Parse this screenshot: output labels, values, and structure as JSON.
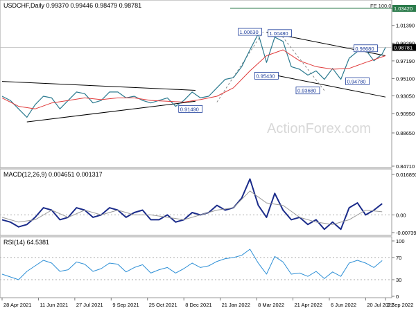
{
  "chart_data": [
    {
      "type": "line",
      "panel": "price",
      "title": "USDCHF,Daily  0.99370 0.99446 0.98479 0.98781",
      "symbol": "USDCHF,Daily",
      "ohlc": [
        "0.99370",
        "0.99446",
        "0.98479",
        "0.98781"
      ],
      "ylim": [
        0.8471,
        1.0342
      ],
      "yticks": [
        "1.03420",
        "1.01390",
        "0.99290",
        "0.97190",
        "0.95100",
        "0.93050",
        "0.90950",
        "0.88650",
        "0.84710"
      ],
      "current_price": "0.98781",
      "fib_label": "FE 100.0",
      "watermark": "ActionForex.com",
      "price_labels": [
        {
          "text": "1.00630",
          "t": 150,
          "v": 1.0063
        },
        {
          "text": "1.00480",
          "t": 168,
          "v": 1.0048
        },
        {
          "text": "0.95430",
          "t": 160,
          "v": 0.9543
        },
        {
          "text": "0.98680",
          "t": 220,
          "v": 0.9868
        },
        {
          "text": "0.94780",
          "t": 215,
          "v": 0.9478
        },
        {
          "text": "0.93680",
          "t": 185,
          "v": 0.9368
        },
        {
          "text": "0.91490",
          "t": 114,
          "v": 0.9149
        }
      ],
      "trendlines": [
        {
          "t1": 0,
          "v1": 0.9475,
          "t2": 117,
          "v2": 0.937,
          "color": "#000000"
        },
        {
          "t1": 15,
          "v1": 0.8995,
          "t2": 117,
          "v2": 0.924,
          "color": "#000000"
        },
        {
          "t1": 160,
          "v1": 1.006,
          "t2": 232,
          "v2": 0.978,
          "color": "#000000"
        },
        {
          "t1": 165,
          "v1": 0.955,
          "t2": 232,
          "v2": 0.929,
          "color": "#000000"
        },
        {
          "t1": 130,
          "v1": 0.923,
          "t2": 158,
          "v2": 1.0063,
          "color": "#888888",
          "dashed": true
        },
        {
          "t1": 168,
          "v1": 1.0048,
          "t2": 195,
          "v2": 0.9368,
          "color": "#888888",
          "dashed": true
        }
      ],
      "series": [
        {
          "name": "",
          "color": "#2b7a8f",
          "x": [
            0,
            5,
            10,
            15,
            20,
            25,
            30,
            35,
            40,
            45,
            50,
            55,
            60,
            65,
            70,
            75,
            80,
            85,
            90,
            95,
            100,
            105,
            110,
            115,
            120,
            125,
            130,
            135,
            140,
            145,
            150,
            155,
            160,
            165,
            170,
            175,
            180,
            185,
            190,
            195,
            200,
            205,
            210,
            215,
            220,
            225,
            230,
            232
          ],
          "values": [
            0.93,
            0.925,
            0.915,
            0.905,
            0.92,
            0.93,
            0.928,
            0.915,
            0.925,
            0.935,
            0.933,
            0.922,
            0.925,
            0.935,
            0.935,
            0.928,
            0.93,
            0.925,
            0.922,
            0.925,
            0.928,
            0.918,
            0.925,
            0.935,
            0.928,
            0.93,
            0.94,
            0.95,
            0.952,
            0.965,
            0.985,
            1.004,
            0.97,
            1.0,
            0.995,
            0.965,
            0.962,
            0.955,
            0.96,
            0.95,
            0.963,
            0.95,
            0.975,
            0.983,
            0.985,
            0.972,
            0.98,
            0.9878
          ]
        },
        {
          "name": "",
          "color": "#e03a3a",
          "x": [
            0,
            10,
            20,
            30,
            40,
            50,
            60,
            70,
            80,
            90,
            100,
            110,
            120,
            130,
            140,
            150,
            160,
            170,
            180,
            190,
            200,
            210,
            220,
            232
          ],
          "values": [
            0.928,
            0.918,
            0.915,
            0.922,
            0.925,
            0.928,
            0.926,
            0.928,
            0.928,
            0.925,
            0.924,
            0.923,
            0.926,
            0.93,
            0.94,
            0.96,
            0.978,
            0.985,
            0.972,
            0.965,
            0.962,
            0.963,
            0.97,
            0.978
          ]
        }
      ]
    },
    {
      "type": "line",
      "panel": "macd",
      "title": "MACD(12,26,9) 0.004651 0.001317",
      "ylim": [
        -0.00739,
        0.01689
      ],
      "yticks": [
        "0.016893",
        "0.00",
        "-0.007393"
      ],
      "series": [
        {
          "name": "",
          "color": "#1a2b8a",
          "x": [
            0,
            5,
            10,
            15,
            20,
            25,
            30,
            35,
            40,
            45,
            50,
            55,
            60,
            65,
            70,
            75,
            80,
            85,
            90,
            95,
            100,
            105,
            110,
            115,
            120,
            125,
            130,
            135,
            140,
            145,
            150,
            155,
            160,
            165,
            170,
            175,
            180,
            185,
            190,
            195,
            200,
            205,
            210,
            215,
            220,
            225,
            230
          ],
          "values": [
            -0.002,
            -0.003,
            -0.005,
            -0.004,
            -0.001,
            0.003,
            0.002,
            -0.002,
            -0.001,
            0.003,
            0.002,
            -0.001,
            0.0,
            0.003,
            0.002,
            -0.001,
            0.001,
            0.002,
            -0.002,
            -0.002,
            0.0,
            -0.003,
            -0.002,
            0.001,
            0.0,
            0.001,
            0.004,
            0.002,
            0.003,
            0.007,
            0.015,
            0.004,
            -0.001,
            0.009,
            0.002,
            -0.002,
            -0.001,
            -0.004,
            -0.002,
            -0.006,
            -0.003,
            -0.006,
            0.003,
            0.005,
            0.0,
            0.002,
            0.0047
          ]
        },
        {
          "name": "",
          "color": "#999999",
          "x": [
            0,
            10,
            20,
            30,
            40,
            50,
            60,
            70,
            80,
            90,
            100,
            110,
            120,
            130,
            140,
            150,
            160,
            170,
            180,
            190,
            200,
            210,
            220,
            230
          ],
          "values": [
            -0.001,
            -0.003,
            -0.002,
            0.002,
            -0.001,
            0.002,
            0.0,
            0.002,
            0.0,
            0.0,
            -0.001,
            -0.002,
            0.0,
            0.002,
            0.003,
            0.01,
            0.005,
            0.004,
            -0.001,
            -0.003,
            -0.004,
            -0.002,
            0.002,
            0.0013
          ]
        }
      ]
    },
    {
      "type": "line",
      "panel": "rsi",
      "title": "RSI(14) 64.5381",
      "ylim": [
        0,
        100
      ],
      "yticks": [
        "100",
        "70",
        "30",
        "0"
      ],
      "series": [
        {
          "name": "",
          "color": "#2d8fd6",
          "x": [
            0,
            5,
            10,
            15,
            20,
            25,
            30,
            35,
            40,
            45,
            50,
            55,
            60,
            65,
            70,
            75,
            80,
            85,
            90,
            95,
            100,
            105,
            110,
            115,
            120,
            125,
            130,
            135,
            140,
            145,
            150,
            155,
            160,
            165,
            170,
            175,
            180,
            185,
            190,
            195,
            200,
            205,
            210,
            215,
            220,
            225,
            230
          ],
          "values": [
            40,
            35,
            30,
            45,
            55,
            65,
            60,
            45,
            48,
            62,
            58,
            45,
            50,
            60,
            58,
            44,
            52,
            57,
            42,
            48,
            52,
            42,
            50,
            60,
            52,
            55,
            63,
            68,
            70,
            74,
            85,
            60,
            40,
            72,
            62,
            40,
            42,
            36,
            45,
            32,
            44,
            36,
            60,
            65,
            60,
            52,
            64.5
          ]
        }
      ]
    }
  ],
  "x_axis_labels": [
    "28 Apr 2021",
    "11 Jun 2021",
    "27 Jul 2021",
    "9 Sep 2021",
    "25 Oct 2021",
    "8 Dec 2021",
    "21 Jan 2022",
    "8 Mar 2022",
    "21 Apr 2022",
    "6 Jun 2022",
    "20 Jul 2022",
    "2 Sep 2022"
  ],
  "x_axis_ticks": [
    0,
    22,
    44,
    66,
    88,
    110,
    132,
    154,
    176,
    198,
    220,
    232
  ]
}
